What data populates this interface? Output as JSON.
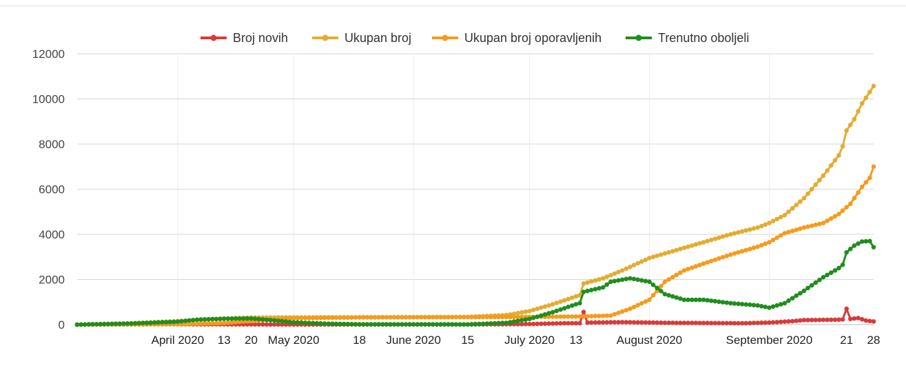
{
  "chart_data": {
    "type": "line",
    "title": "",
    "xlabel": "",
    "ylabel": "",
    "ylim": [
      0,
      12000
    ],
    "y_ticks": [
      0,
      2000,
      4000,
      6000,
      8000,
      10000,
      12000
    ],
    "x_range": [
      "2020-03-06",
      "2020-09-28"
    ],
    "x_ticks": [
      {
        "date": "2020-04-01",
        "label": "April 2020"
      },
      {
        "date": "2020-04-13",
        "label": "13"
      },
      {
        "date": "2020-04-20",
        "label": "20"
      },
      {
        "date": "2020-05-01",
        "label": "May 2020"
      },
      {
        "date": "2020-05-18",
        "label": "18"
      },
      {
        "date": "2020-06-01",
        "label": "June 2020"
      },
      {
        "date": "2020-06-15",
        "label": "15"
      },
      {
        "date": "2020-07-01",
        "label": "July 2020"
      },
      {
        "date": "2020-07-13",
        "label": "13"
      },
      {
        "date": "2020-08-01",
        "label": "August 2020"
      },
      {
        "date": "2020-09-01",
        "label": "September 2020"
      },
      {
        "date": "2020-09-21",
        "label": "21"
      },
      {
        "date": "2020-09-28",
        "label": "28"
      }
    ],
    "grid": true,
    "legend_position": "top",
    "series": [
      {
        "name": "Broj novih",
        "color": "#d93a3a",
        "points": [
          [
            "2020-03-06",
            0
          ],
          [
            "2020-04-01",
            15
          ],
          [
            "2020-05-01",
            5
          ],
          [
            "2020-06-15",
            5
          ],
          [
            "2020-07-01",
            25
          ],
          [
            "2020-07-10",
            60
          ],
          [
            "2020-07-14",
            60
          ],
          [
            "2020-07-15",
            560
          ],
          [
            "2020-07-16",
            90
          ],
          [
            "2020-07-25",
            110
          ],
          [
            "2020-08-05",
            80
          ],
          [
            "2020-08-15",
            70
          ],
          [
            "2020-08-25",
            60
          ],
          [
            "2020-09-01",
            90
          ],
          [
            "2020-09-07",
            150
          ],
          [
            "2020-09-10",
            200
          ],
          [
            "2020-09-15",
            210
          ],
          [
            "2020-09-19",
            220
          ],
          [
            "2020-09-20",
            230
          ],
          [
            "2020-09-21",
            700
          ],
          [
            "2020-09-22",
            250
          ],
          [
            "2020-09-24",
            290
          ],
          [
            "2020-09-26",
            180
          ],
          [
            "2020-09-28",
            140
          ]
        ]
      },
      {
        "name": "Ukupan broj",
        "color": "#e3ac30",
        "points": [
          [
            "2020-03-06",
            0
          ],
          [
            "2020-03-20",
            60
          ],
          [
            "2020-04-01",
            150
          ],
          [
            "2020-04-13",
            270
          ],
          [
            "2020-04-20",
            310
          ],
          [
            "2020-05-01",
            320
          ],
          [
            "2020-06-01",
            330
          ],
          [
            "2020-06-15",
            340
          ],
          [
            "2020-06-25",
            420
          ],
          [
            "2020-07-01",
            600
          ],
          [
            "2020-07-07",
            900
          ],
          [
            "2020-07-13",
            1250
          ],
          [
            "2020-07-14",
            1300
          ],
          [
            "2020-07-15",
            1820
          ],
          [
            "2020-07-20",
            2050
          ],
          [
            "2020-07-25",
            2400
          ],
          [
            "2020-08-01",
            2950
          ],
          [
            "2020-08-08",
            3300
          ],
          [
            "2020-08-15",
            3650
          ],
          [
            "2020-08-22",
            4000
          ],
          [
            "2020-08-29",
            4300
          ],
          [
            "2020-09-01",
            4500
          ],
          [
            "2020-09-05",
            4850
          ],
          [
            "2020-09-10",
            5600
          ],
          [
            "2020-09-15",
            6600
          ],
          [
            "2020-09-19",
            7500
          ],
          [
            "2020-09-20",
            7900
          ],
          [
            "2020-09-21",
            8600
          ],
          [
            "2020-09-23",
            9100
          ],
          [
            "2020-09-25",
            9800
          ],
          [
            "2020-09-27",
            10300
          ],
          [
            "2020-09-28",
            10570
          ]
        ]
      },
      {
        "name": "Ukupan broj oporavljenih",
        "color": "#f59b1c",
        "points": [
          [
            "2020-03-06",
            0
          ],
          [
            "2020-04-01",
            20
          ],
          [
            "2020-04-13",
            70
          ],
          [
            "2020-04-20",
            160
          ],
          [
            "2020-05-01",
            280
          ],
          [
            "2020-05-18",
            320
          ],
          [
            "2020-06-15",
            330
          ],
          [
            "2020-07-01",
            340
          ],
          [
            "2020-07-15",
            360
          ],
          [
            "2020-07-22",
            400
          ],
          [
            "2020-07-27",
            700
          ],
          [
            "2020-08-01",
            1100
          ],
          [
            "2020-08-05",
            1900
          ],
          [
            "2020-08-10",
            2400
          ],
          [
            "2020-08-15",
            2700
          ],
          [
            "2020-08-22",
            3100
          ],
          [
            "2020-08-29",
            3450
          ],
          [
            "2020-09-01",
            3650
          ],
          [
            "2020-09-05",
            4050
          ],
          [
            "2020-09-10",
            4300
          ],
          [
            "2020-09-15",
            4500
          ],
          [
            "2020-09-19",
            4900
          ],
          [
            "2020-09-22",
            5350
          ],
          [
            "2020-09-25",
            6100
          ],
          [
            "2020-09-27",
            6500
          ],
          [
            "2020-09-28",
            7000
          ]
        ]
      },
      {
        "name": "Trenutno oboljeli",
        "color": "#1e8e1e",
        "points": [
          [
            "2020-03-06",
            0
          ],
          [
            "2020-03-20",
            50
          ],
          [
            "2020-04-01",
            130
          ],
          [
            "2020-04-06",
            220
          ],
          [
            "2020-04-13",
            260
          ],
          [
            "2020-04-20",
            270
          ],
          [
            "2020-04-25",
            200
          ],
          [
            "2020-05-01",
            100
          ],
          [
            "2020-05-10",
            40
          ],
          [
            "2020-05-18",
            15
          ],
          [
            "2020-06-15",
            10
          ],
          [
            "2020-06-25",
            80
          ],
          [
            "2020-07-01",
            250
          ],
          [
            "2020-07-07",
            550
          ],
          [
            "2020-07-13",
            900
          ],
          [
            "2020-07-14",
            950
          ],
          [
            "2020-07-15",
            1450
          ],
          [
            "2020-07-20",
            1650
          ],
          [
            "2020-07-22",
            1900
          ],
          [
            "2020-07-27",
            2050
          ],
          [
            "2020-08-01",
            1900
          ],
          [
            "2020-08-05",
            1350
          ],
          [
            "2020-08-10",
            1100
          ],
          [
            "2020-08-15",
            1100
          ],
          [
            "2020-08-22",
            950
          ],
          [
            "2020-08-29",
            850
          ],
          [
            "2020-09-01",
            750
          ],
          [
            "2020-09-05",
            950
          ],
          [
            "2020-09-10",
            1500
          ],
          [
            "2020-09-15",
            2100
          ],
          [
            "2020-09-19",
            2500
          ],
          [
            "2020-09-20",
            2650
          ],
          [
            "2020-09-21",
            3200
          ],
          [
            "2020-09-23",
            3500
          ],
          [
            "2020-09-25",
            3680
          ],
          [
            "2020-09-27",
            3700
          ],
          [
            "2020-09-28",
            3430
          ]
        ]
      }
    ]
  }
}
